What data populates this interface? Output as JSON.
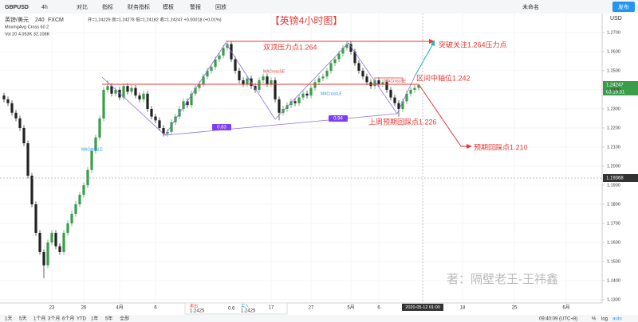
{
  "toolbar": {
    "symbol": "GBPUSD",
    "interval": "4h",
    "items": [
      "对比",
      "指标",
      "财务指标",
      "模板",
      "警报",
      "回放"
    ],
    "layout": "未命名",
    "publish": "发布"
  },
  "legend": {
    "name": "英镑/美元",
    "period": "240",
    "source": "FXCM",
    "ohlc": "开=1.24229 高=1.24278 低=1.24182 收=1.24247 +0.00018 (+0.01%)",
    "ma": "MovingAvg Cross 60 2",
    "vol": "Vol 20 4.053K 32.108K"
  },
  "annotations": {
    "title": "【英镑4小时图】",
    "double_top": "双顶压力点1.264",
    "breakout": "突破关注1.264压力点",
    "axis": "区间中轴位1.242",
    "last_week": "上周预期回踩点1.226",
    "expected": "预期回踩点1.210",
    "ratio1": "0.83",
    "ratio2": "0.94",
    "signals": [
      "MACrossLE",
      "MACrossSE",
      "MACrossLE",
      "MACrossSE"
    ],
    "watermark": "著：隔壁老王-王祎鑫"
  },
  "axis_labels": {
    "currency": "USD",
    "last_price": "1.24247",
    "countdown": "03:19:51",
    "cursor_price": "1.19368",
    "cursor_time": "2020-05-12 01:00"
  },
  "trade": {
    "sell_label": "卖出",
    "sell": "1.2425",
    "spread": "0.6",
    "buy_label": "买入",
    "buy": "1.2425"
  },
  "bottom": {
    "ranges": [
      "1天",
      "5天",
      "1个月",
      "3个月",
      "6个月",
      "YTD",
      "1年",
      "5年",
      "全部"
    ],
    "clock": "09:40:09 (UTC+8)",
    "pct": "%",
    "log": "log",
    "auto": "auto"
  },
  "chart_data": {
    "type": "candlestick",
    "up_color": "#3a9d4a",
    "down_color": "#222222",
    "grid": true,
    "xlim": [
      -1,
      150
    ],
    "ylim": [
      1.1283,
      1.28
    ],
    "yticks": [
      {
        "value": 1.13,
        "label": "1.1300"
      },
      {
        "value": 1.14,
        "label": "1.1400"
      },
      {
        "value": 1.15,
        "label": "1.1500"
      },
      {
        "value": 1.16,
        "label": "1.1600"
      },
      {
        "value": 1.17,
        "label": "1.1700"
      },
      {
        "value": 1.18,
        "label": "1.1800"
      },
      {
        "value": 1.19,
        "label": "1.1900"
      },
      {
        "value": 1.2,
        "label": "1.2000"
      },
      {
        "value": 1.21,
        "label": "1.2100"
      },
      {
        "value": 1.22,
        "label": "1.2200"
      },
      {
        "value": 1.23,
        "label": "1.2300"
      },
      {
        "value": 1.24,
        "label": "1.2400"
      },
      {
        "value": 1.25,
        "label": "1.2500"
      },
      {
        "value": 1.26,
        "label": "1.2600"
      },
      {
        "value": 1.27,
        "label": "1.2700"
      }
    ],
    "xticks": [
      {
        "value": 12,
        "label": "23"
      },
      {
        "value": 20,
        "label": "26"
      },
      {
        "value": 29,
        "label": "4月"
      },
      {
        "value": 38,
        "label": "6"
      },
      {
        "value": 67,
        "label": "17"
      },
      {
        "value": 77,
        "label": "27"
      },
      {
        "value": 87,
        "label": "5月"
      },
      {
        "value": 94,
        "label": "6"
      },
      {
        "value": 115,
        "label": "18"
      },
      {
        "value": 128,
        "label": "25"
      },
      {
        "value": 141,
        "label": "6月"
      }
    ],
    "candles": [
      [
        1.237,
        1.2385,
        1.2335,
        1.235
      ],
      [
        1.235,
        1.2365,
        1.2315,
        1.233
      ],
      [
        1.233,
        1.2345,
        1.2265,
        1.228
      ],
      [
        1.228,
        1.2295,
        1.2235,
        1.225
      ],
      [
        1.225,
        1.2265,
        1.2185,
        1.22
      ],
      [
        1.22,
        1.2215,
        1.2105,
        1.212
      ],
      [
        1.212,
        1.2135,
        1.1935,
        1.195
      ],
      [
        1.195,
        1.1965,
        1.1785,
        1.18
      ],
      [
        1.18,
        1.1815,
        1.1635,
        1.165
      ],
      [
        1.165,
        1.1665,
        1.1535,
        1.155
      ],
      [
        1.155,
        1.1565,
        1.1412,
        1.148
      ],
      [
        1.148,
        1.1615,
        1.1465,
        1.16
      ],
      [
        1.16,
        1.1665,
        1.1585,
        1.165
      ],
      [
        1.165,
        1.1665,
        1.1565,
        1.158
      ],
      [
        1.158,
        1.1595,
        1.1535,
        1.155
      ],
      [
        1.155,
        1.1665,
        1.1535,
        1.165
      ],
      [
        1.165,
        1.1715,
        1.1635,
        1.17
      ],
      [
        1.17,
        1.1765,
        1.1685,
        1.175
      ],
      [
        1.175,
        1.1815,
        1.1735,
        1.18
      ],
      [
        1.18,
        1.1865,
        1.1785,
        1.185
      ],
      [
        1.185,
        1.1915,
        1.1835,
        1.19
      ],
      [
        1.19,
        1.1995,
        1.1885,
        1.198
      ],
      [
        1.198,
        1.2095,
        1.1965,
        1.208
      ],
      [
        1.208,
        1.2165,
        1.2065,
        1.215
      ],
      [
        1.215,
        1.2265,
        1.2135,
        1.225
      ],
      [
        1.225,
        1.2415,
        1.2235,
        1.24
      ],
      [
        1.24,
        1.245,
        1.2385,
        1.242
      ],
      [
        1.242,
        1.2435,
        1.2365,
        1.238
      ],
      [
        1.238,
        1.2415,
        1.2365,
        1.24
      ],
      [
        1.24,
        1.2415,
        1.2345,
        1.236
      ],
      [
        1.236,
        1.2435,
        1.2345,
        1.242
      ],
      [
        1.242,
        1.2435,
        1.2375,
        1.239
      ],
      [
        1.239,
        1.2425,
        1.2375,
        1.241
      ],
      [
        1.241,
        1.2425,
        1.2355,
        1.237
      ],
      [
        1.237,
        1.2385,
        1.2335,
        1.235
      ],
      [
        1.235,
        1.2395,
        1.2335,
        1.238
      ],
      [
        1.238,
        1.2395,
        1.2285,
        1.23
      ],
      [
        1.23,
        1.2315,
        1.2245,
        1.226
      ],
      [
        1.226,
        1.2275,
        1.2225,
        1.224
      ],
      [
        1.224,
        1.2255,
        1.2185,
        1.22
      ],
      [
        1.22,
        1.2215,
        1.2155,
        1.217
      ],
      [
        1.217,
        1.2195,
        1.2155,
        1.218
      ],
      [
        1.218,
        1.2245,
        1.2165,
        1.223
      ],
      [
        1.223,
        1.2275,
        1.2215,
        1.226
      ],
      [
        1.226,
        1.2315,
        1.2245,
        1.23
      ],
      [
        1.23,
        1.2355,
        1.2285,
        1.234
      ],
      [
        1.234,
        1.2355,
        1.2305,
        1.232
      ],
      [
        1.232,
        1.2395,
        1.2305,
        1.238
      ],
      [
        1.238,
        1.2425,
        1.2365,
        1.241
      ],
      [
        1.241,
        1.2445,
        1.2395,
        1.243
      ],
      [
        1.243,
        1.2485,
        1.2415,
        1.247
      ],
      [
        1.247,
        1.2515,
        1.2455,
        1.25
      ],
      [
        1.25,
        1.2535,
        1.2485,
        1.252
      ],
      [
        1.252,
        1.2575,
        1.2505,
        1.256
      ],
      [
        1.256,
        1.2595,
        1.2545,
        1.258
      ],
      [
        1.258,
        1.2635,
        1.2565,
        1.262
      ],
      [
        1.262,
        1.2655,
        1.2605,
        1.264
      ],
      [
        1.264,
        1.2655,
        1.2545,
        1.256
      ],
      [
        1.256,
        1.2575,
        1.2485,
        1.25
      ],
      [
        1.25,
        1.2515,
        1.2435,
        1.245
      ],
      [
        1.245,
        1.2465,
        1.2415,
        1.243
      ],
      [
        1.243,
        1.2475,
        1.2415,
        1.246
      ],
      [
        1.246,
        1.2475,
        1.2405,
        1.242
      ],
      [
        1.242,
        1.2435,
        1.2385,
        1.24
      ],
      [
        1.24,
        1.2465,
        1.2385,
        1.245
      ],
      [
        1.245,
        1.2485,
        1.2435,
        1.247
      ],
      [
        1.247,
        1.2485,
        1.2415,
        1.243
      ],
      [
        1.243,
        1.2465,
        1.2415,
        1.245
      ],
      [
        1.245,
        1.2465,
        1.2335,
        1.235
      ],
      [
        1.235,
        1.2365,
        1.224,
        1.228
      ],
      [
        1.228,
        1.2315,
        1.2265,
        1.23
      ],
      [
        1.23,
        1.2335,
        1.2285,
        1.232
      ],
      [
        1.232,
        1.2355,
        1.2305,
        1.234
      ],
      [
        1.234,
        1.2355,
        1.2315,
        1.233
      ],
      [
        1.233,
        1.2375,
        1.2315,
        1.236
      ],
      [
        1.236,
        1.2395,
        1.2345,
        1.238
      ],
      [
        1.238,
        1.2395,
        1.2355,
        1.237
      ],
      [
        1.237,
        1.2425,
        1.2355,
        1.241
      ],
      [
        1.241,
        1.2455,
        1.2395,
        1.244
      ],
      [
        1.244,
        1.2475,
        1.2425,
        1.246
      ],
      [
        1.246,
        1.2485,
        1.2445,
        1.247
      ],
      [
        1.247,
        1.2515,
        1.2455,
        1.25
      ],
      [
        1.25,
        1.2555,
        1.2485,
        1.254
      ],
      [
        1.254,
        1.2575,
        1.2525,
        1.256
      ],
      [
        1.256,
        1.2605,
        1.2545,
        1.259
      ],
      [
        1.259,
        1.2635,
        1.2575,
        1.262
      ],
      [
        1.262,
        1.2655,
        1.2605,
        1.264
      ],
      [
        1.264,
        1.2655,
        1.2585,
        1.26
      ],
      [
        1.26,
        1.2615,
        1.2525,
        1.254
      ],
      [
        1.254,
        1.2555,
        1.2485,
        1.25
      ],
      [
        1.25,
        1.2515,
        1.2455,
        1.247
      ],
      [
        1.247,
        1.2485,
        1.2425,
        1.244
      ],
      [
        1.244,
        1.2455,
        1.2405,
        1.242
      ],
      [
        1.242,
        1.2465,
        1.2405,
        1.245
      ],
      [
        1.245,
        1.2465,
        1.2415,
        1.243
      ],
      [
        1.243,
        1.2455,
        1.2415,
        1.244
      ],
      [
        1.244,
        1.2455,
        1.2385,
        1.24
      ],
      [
        1.24,
        1.2415,
        1.2345,
        1.236
      ],
      [
        1.236,
        1.2375,
        1.2315,
        1.233
      ],
      [
        1.233,
        1.2345,
        1.226,
        1.23
      ],
      [
        1.23,
        1.2355,
        1.2285,
        1.234
      ],
      [
        1.234,
        1.2395,
        1.2325,
        1.238
      ],
      [
        1.238,
        1.2415,
        1.2365,
        1.24
      ],
      [
        1.24,
        1.2425,
        1.2385,
        1.241
      ],
      [
        1.241,
        1.2428,
        1.2395,
        1.24247
      ]
    ]
  }
}
